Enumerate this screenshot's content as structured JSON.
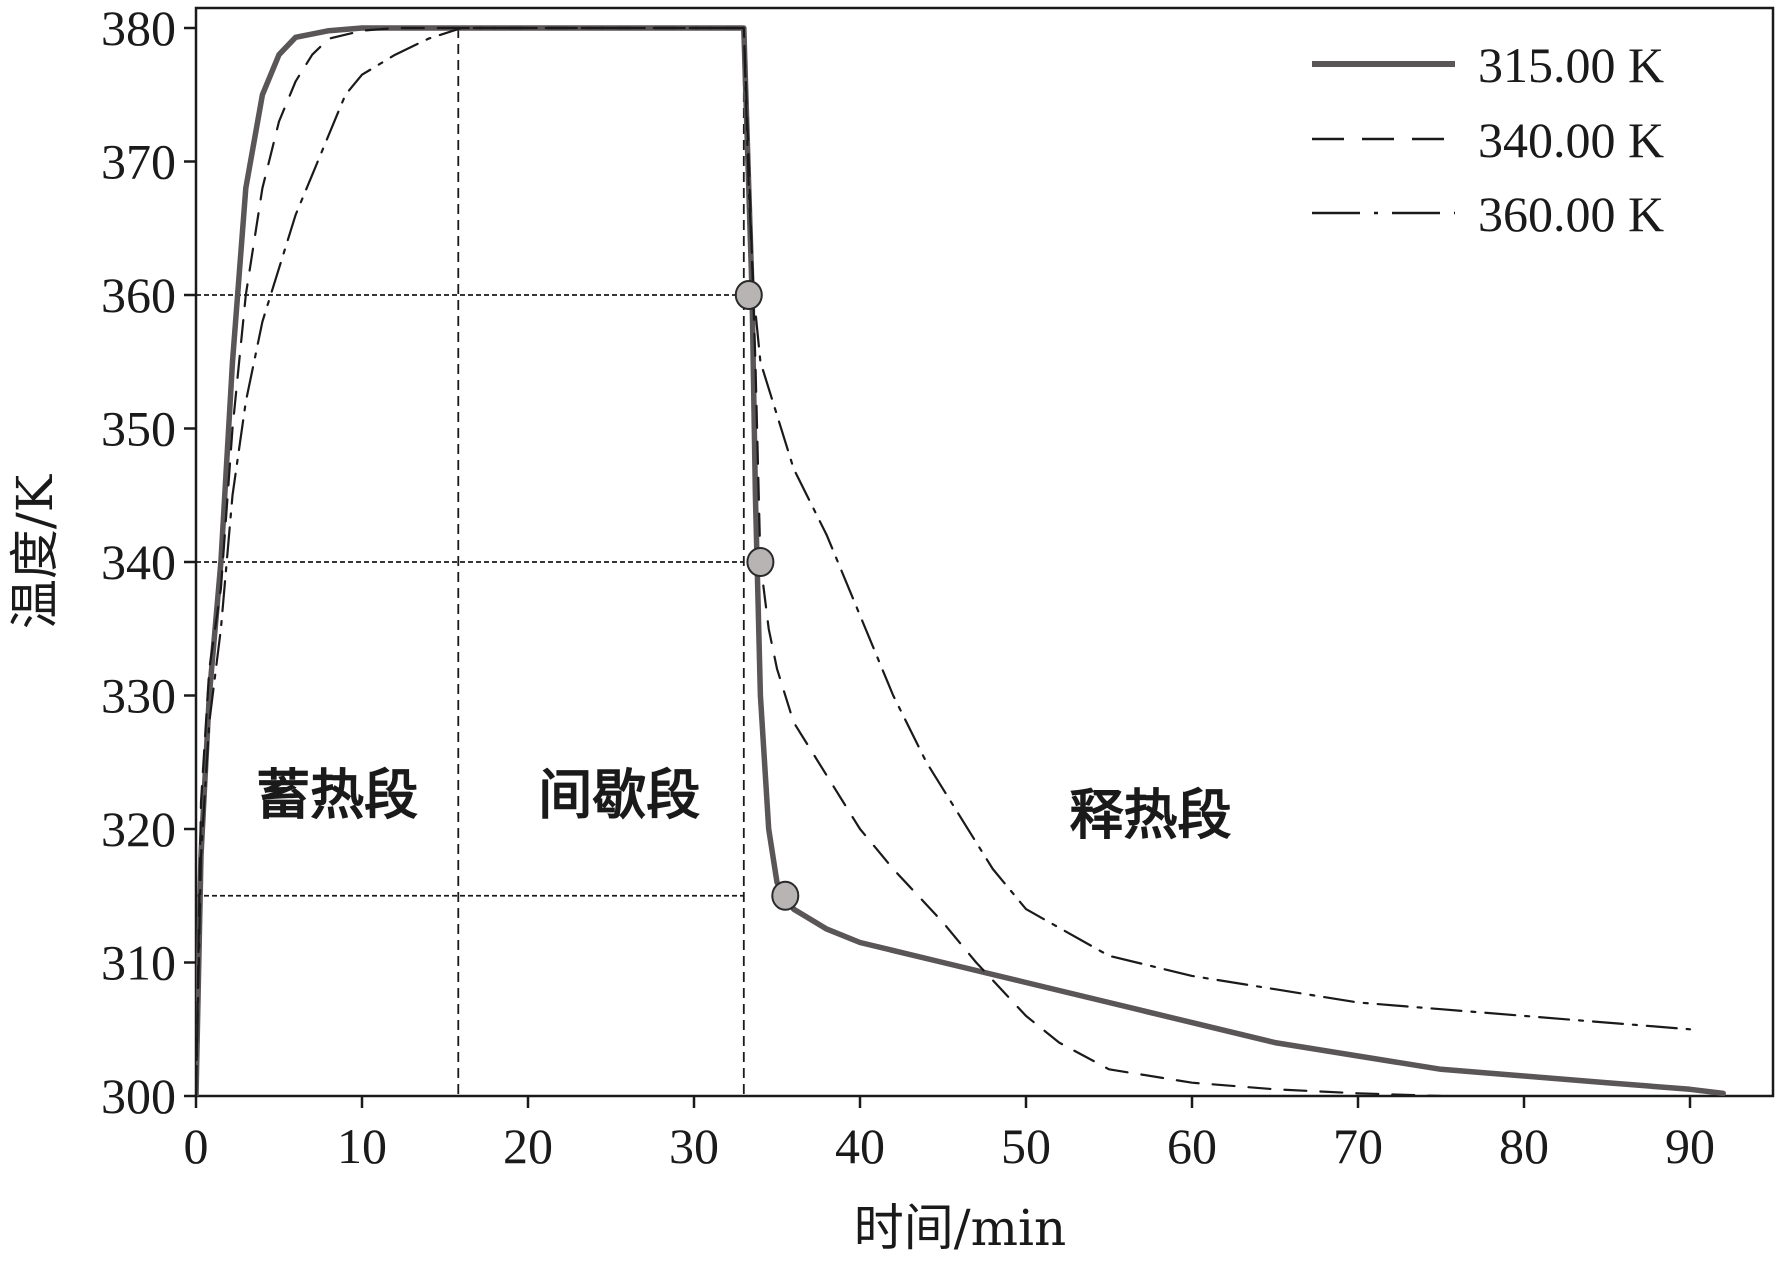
{
  "chart_data": {
    "type": "line",
    "title": "",
    "xlabel": "时间/min",
    "ylabel": "温度/K",
    "xlim": [
      0,
      95
    ],
    "ylim": [
      300,
      380
    ],
    "xticks": [
      "0",
      "10",
      "20",
      "30",
      "40",
      "50",
      "60",
      "70",
      "80",
      "90"
    ],
    "yticks": [
      "300",
      "310",
      "320",
      "330",
      "340",
      "350",
      "360",
      "370",
      "380"
    ],
    "legend_position": "top-right",
    "grid": false,
    "series": [
      {
        "name": "315.00 K",
        "style": "solid",
        "color": "#5a5557",
        "x": [
          0,
          0.3,
          0.8,
          1.5,
          2.2,
          3,
          4,
          5,
          6,
          8,
          10,
          15,
          20,
          25,
          30,
          33,
          33.2,
          33.5,
          33.7,
          34,
          34.5,
          35,
          35.5,
          36,
          38,
          40,
          45,
          50,
          55,
          60,
          65,
          70,
          75,
          80,
          85,
          90,
          92
        ],
        "y": [
          300,
          318,
          330,
          340,
          355,
          368,
          375,
          378,
          379.3,
          379.8,
          380,
          380,
          380,
          380,
          380,
          380,
          372,
          360,
          345,
          330,
          320,
          316,
          315,
          314,
          312.5,
          311.5,
          310,
          308.5,
          307,
          305.5,
          304,
          303,
          302,
          301.5,
          301,
          300.5,
          300.2
        ]
      },
      {
        "name": "340.00 K",
        "style": "dashed",
        "color": "#1a1a1a",
        "x": [
          0,
          0.3,
          0.8,
          1.5,
          2.2,
          3,
          4,
          5,
          6,
          7,
          8,
          10,
          12,
          15,
          20,
          25,
          30,
          33,
          33.3,
          33.7,
          34,
          34.5,
          35,
          36,
          38,
          40,
          42,
          45,
          47,
          50,
          52,
          55,
          60,
          65,
          70,
          75
        ],
        "y": [
          300,
          322,
          332,
          338,
          350,
          360,
          368,
          373,
          376,
          378,
          379.2,
          379.8,
          380,
          380,
          380,
          380,
          380,
          380,
          370,
          355,
          340,
          335,
          332,
          328,
          324,
          320,
          317,
          313,
          310,
          306,
          304,
          302,
          301,
          300.5,
          300.2,
          300
        ]
      },
      {
        "name": "360.00 K",
        "style": "dashdot",
        "color": "#1a1a1a",
        "x": [
          0,
          0.3,
          0.8,
          1.5,
          2.2,
          3,
          4,
          5,
          6,
          7,
          8,
          9,
          10,
          12,
          14,
          16,
          20,
          25,
          30,
          33,
          33.3,
          33.6,
          34,
          35,
          36,
          38,
          40,
          42,
          44,
          46,
          48,
          50,
          55,
          60,
          65,
          70,
          75,
          80,
          85,
          90
        ],
        "y": [
          300,
          318,
          328,
          335,
          345,
          352,
          358,
          362,
          366,
          369,
          372,
          375,
          376.5,
          378,
          379.2,
          380,
          380,
          380,
          380,
          380,
          368,
          360,
          355,
          351,
          347,
          342,
          336,
          330,
          325,
          321,
          317,
          314,
          310.5,
          309,
          308,
          307,
          306.5,
          306,
          305.5,
          305
        ]
      }
    ],
    "reference_lines": {
      "horizontal_y": [
        360,
        340,
        315
      ],
      "vertical_x": [
        15.8,
        33
      ]
    },
    "markers": [
      {
        "x": 33.3,
        "y": 360
      },
      {
        "x": 34.0,
        "y": 340
      },
      {
        "x": 35.5,
        "y": 315
      }
    ],
    "annotations": [
      {
        "text": "蓄热段",
        "x": 8.5,
        "y": 322.5
      },
      {
        "text": "间歇段",
        "x": 25.5,
        "y": 322.5
      },
      {
        "text": "释热段",
        "x": 57.5,
        "y": 321
      }
    ],
    "colors": {
      "solid_series": "#5a5557",
      "marker_fill": "#b8b4b4",
      "axis": "#1a1a1a"
    }
  }
}
